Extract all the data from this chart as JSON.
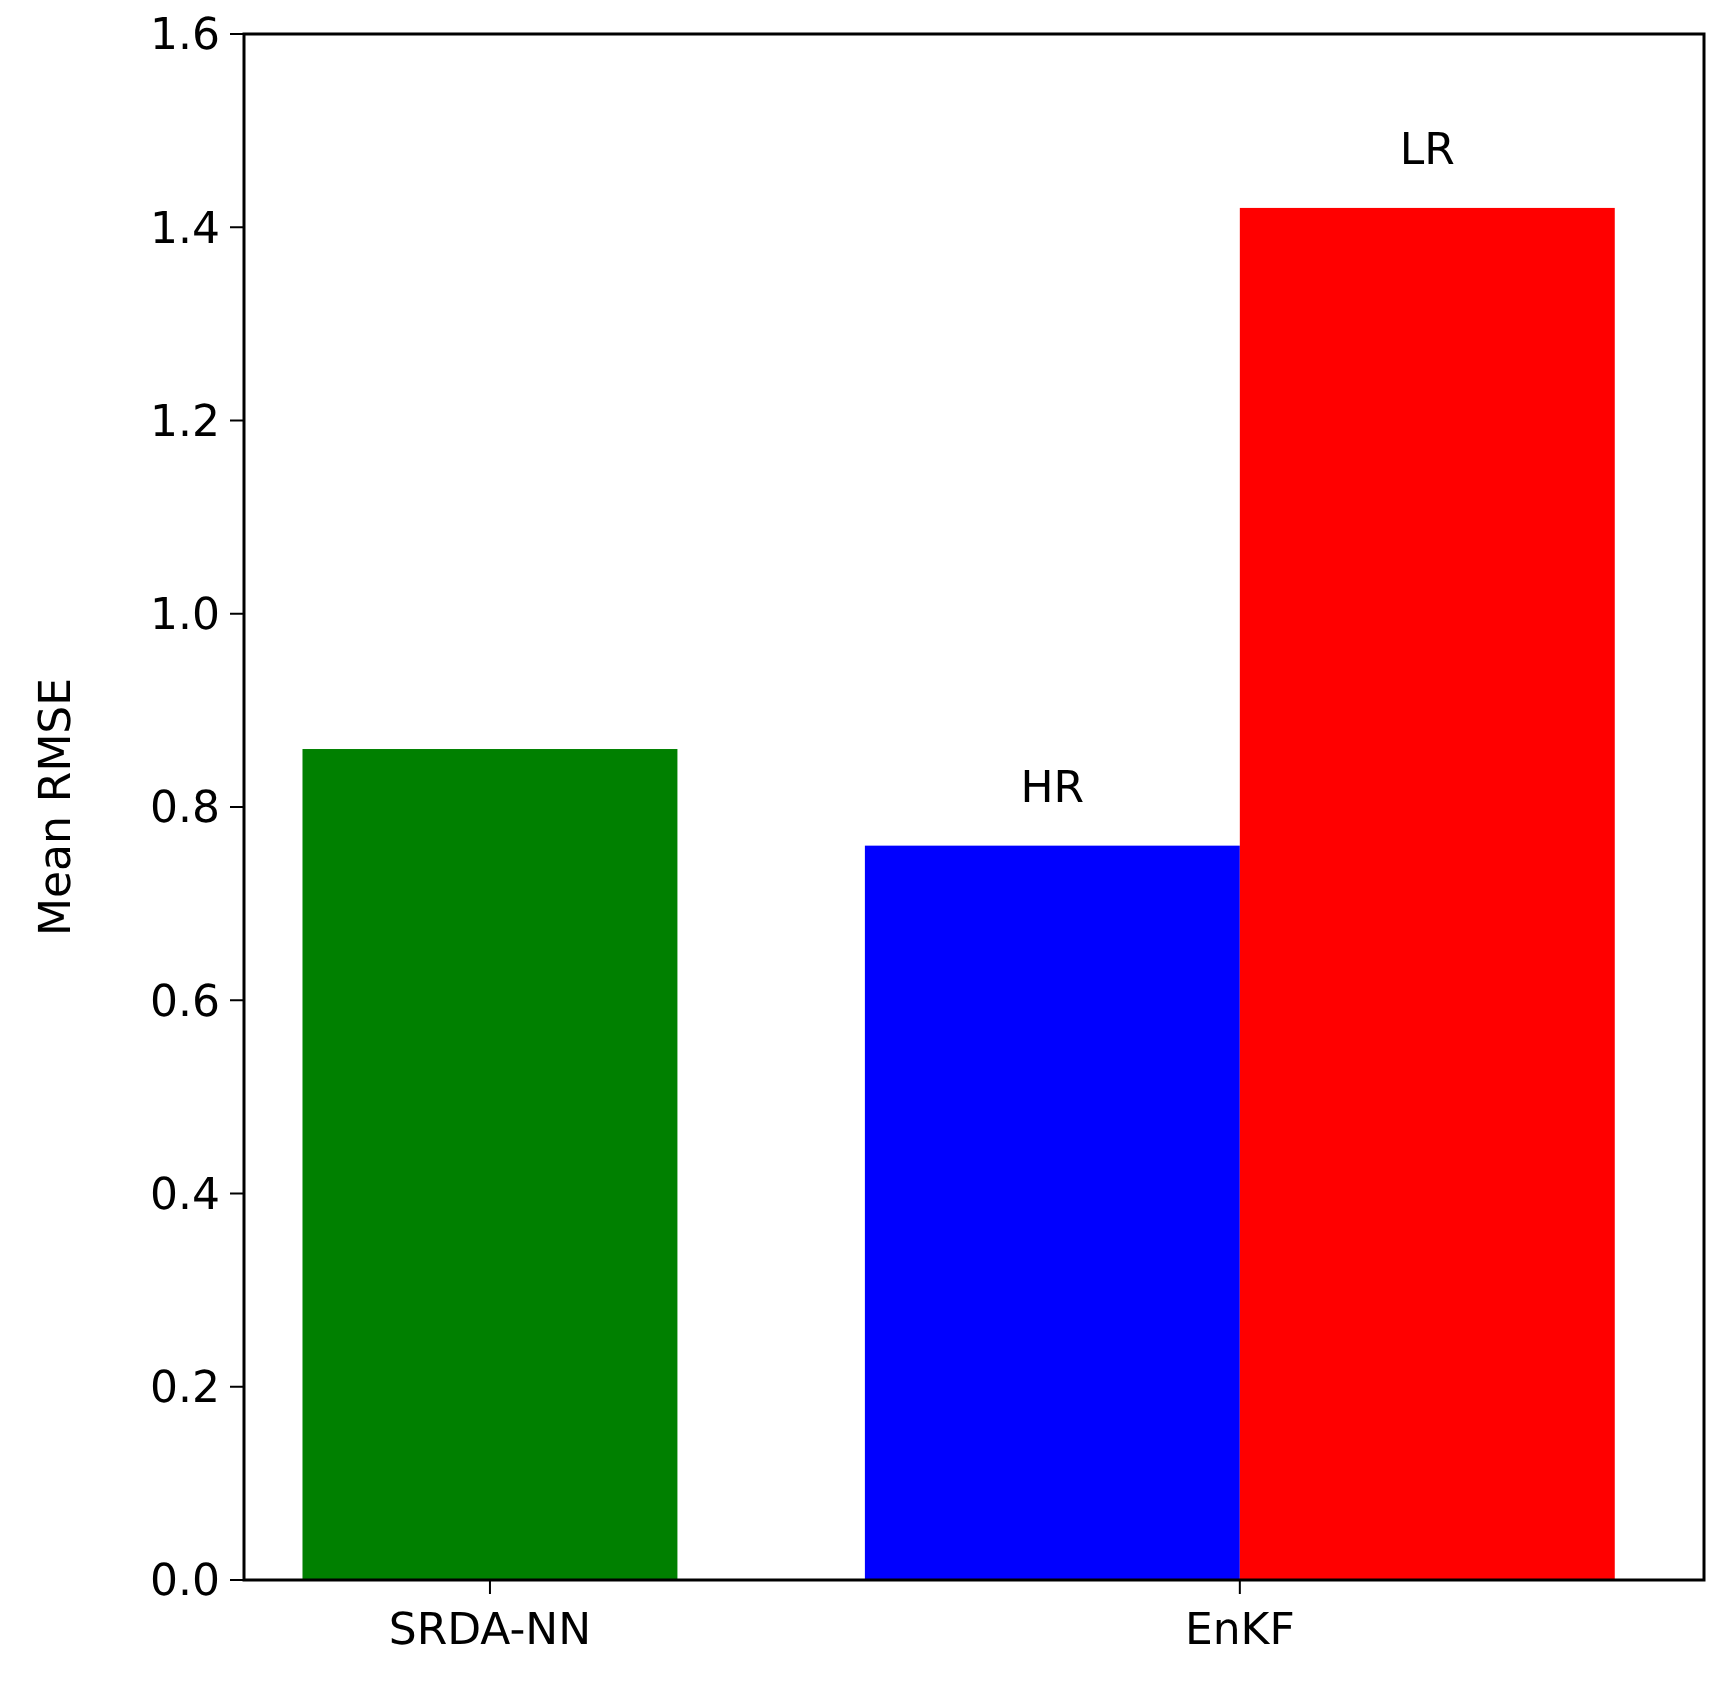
{
  "chart_data": {
    "type": "bar",
    "ylabel": "Mean RMSE",
    "categories": [
      "SRDA-NN",
      "EnKF"
    ],
    "series": [
      {
        "color": "#008000",
        "values": [
          0.86,
          null
        ]
      },
      {
        "name": "HR",
        "color": "#0000ff",
        "values": [
          null,
          0.76
        ]
      },
      {
        "name": "LR",
        "color": "#ff0000",
        "values": [
          null,
          1.42
        ]
      }
    ],
    "ylim": [
      0,
      1.6
    ],
    "yticks": [
      {
        "value": 0,
        "label": "0.0"
      },
      0.2,
      0.4,
      0.6,
      0.8,
      {
        "value": 1,
        "label": "1.0"
      },
      1.2,
      1.4,
      1.6
    ],
    "grid": false
  }
}
